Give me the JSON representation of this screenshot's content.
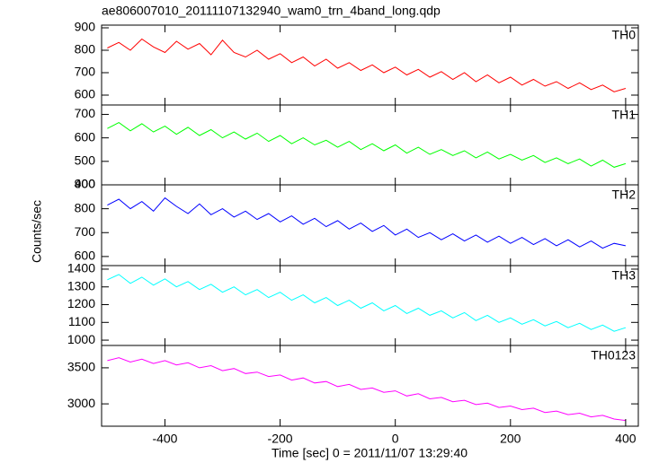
{
  "chart_data": [
    {
      "type": "line",
      "title": "ae806007010_20111107132940_wam0_trn_4band_long.qdp",
      "x": [
        -500,
        -480,
        -460,
        -440,
        -420,
        -400,
        -380,
        -360,
        -340,
        -320,
        -300,
        -280,
        -260,
        -240,
        -220,
        -200,
        -180,
        -160,
        -140,
        -120,
        -100,
        -80,
        -60,
        -40,
        -20,
        0,
        20,
        40,
        60,
        80,
        100,
        120,
        140,
        160,
        180,
        200,
        220,
        240,
        260,
        280,
        300,
        320,
        340,
        360,
        380,
        400
      ],
      "series": [
        {
          "name": "TH0",
          "color": "#ff0000",
          "values": [
            810,
            835,
            800,
            850,
            815,
            790,
            840,
            805,
            830,
            780,
            845,
            790,
            770,
            800,
            760,
            785,
            745,
            770,
            730,
            760,
            720,
            745,
            710,
            735,
            700,
            725,
            690,
            715,
            680,
            705,
            670,
            700,
            660,
            690,
            655,
            680,
            645,
            670,
            640,
            660,
            630,
            655,
            625,
            645,
            615,
            630
          ]
        }
      ],
      "ylim": [
        556,
        912
      ],
      "yticks": [
        600,
        700,
        800,
        900
      ]
    },
    {
      "type": "line",
      "x": [
        -500,
        -480,
        -460,
        -440,
        -420,
        -400,
        -380,
        -360,
        -340,
        -320,
        -300,
        -280,
        -260,
        -240,
        -220,
        -200,
        -180,
        -160,
        -140,
        -120,
        -100,
        -80,
        -60,
        -40,
        -20,
        0,
        20,
        40,
        60,
        80,
        100,
        120,
        140,
        160,
        180,
        200,
        220,
        240,
        260,
        280,
        300,
        320,
        340,
        360,
        380,
        400
      ],
      "series": [
        {
          "name": "TH1",
          "color": "#00ff00",
          "values": [
            640,
            665,
            630,
            660,
            625,
            650,
            615,
            645,
            610,
            635,
            600,
            625,
            595,
            620,
            585,
            610,
            575,
            600,
            570,
            590,
            560,
            585,
            550,
            575,
            545,
            570,
            535,
            560,
            530,
            550,
            525,
            545,
            515,
            540,
            510,
            530,
            505,
            525,
            495,
            515,
            490,
            510,
            480,
            505,
            475,
            490
          ]
        }
      ],
      "ylim": [
        400,
        740
      ],
      "yticks": [
        400,
        500,
        600,
        700
      ]
    },
    {
      "type": "line",
      "ylabel": "Counts/sec",
      "x": [
        -500,
        -480,
        -460,
        -440,
        -420,
        -400,
        -380,
        -360,
        -340,
        -320,
        -300,
        -280,
        -260,
        -240,
        -220,
        -200,
        -180,
        -160,
        -140,
        -120,
        -100,
        -80,
        -60,
        -40,
        -20,
        0,
        20,
        40,
        60,
        80,
        100,
        120,
        140,
        160,
        180,
        200,
        220,
        240,
        260,
        280,
        300,
        320,
        340,
        360,
        380,
        400
      ],
      "series": [
        {
          "name": "TH2",
          "color": "#0000ff",
          "values": [
            815,
            840,
            800,
            830,
            790,
            845,
            810,
            780,
            820,
            775,
            800,
            765,
            790,
            755,
            780,
            745,
            770,
            735,
            760,
            725,
            750,
            715,
            740,
            705,
            730,
            690,
            715,
            680,
            700,
            670,
            695,
            665,
            690,
            660,
            685,
            655,
            680,
            650,
            675,
            645,
            670,
            640,
            665,
            635,
            655,
            645
          ]
        }
      ],
      "ylim": [
        562,
        900
      ],
      "yticks": [
        600,
        700,
        800,
        900
      ]
    },
    {
      "type": "line",
      "x": [
        -500,
        -480,
        -460,
        -440,
        -420,
        -400,
        -380,
        -360,
        -340,
        -320,
        -300,
        -280,
        -260,
        -240,
        -220,
        -200,
        -180,
        -160,
        -140,
        -120,
        -100,
        -80,
        -60,
        -40,
        -20,
        0,
        20,
        40,
        60,
        80,
        100,
        120,
        140,
        160,
        180,
        200,
        220,
        240,
        260,
        280,
        300,
        320,
        340,
        360,
        380,
        400
      ],
      "series": [
        {
          "name": "TH3",
          "color": "#00ffff",
          "values": [
            1340,
            1370,
            1320,
            1355,
            1310,
            1345,
            1300,
            1330,
            1285,
            1315,
            1270,
            1300,
            1255,
            1285,
            1240,
            1270,
            1225,
            1255,
            1210,
            1240,
            1195,
            1225,
            1180,
            1210,
            1165,
            1195,
            1150,
            1180,
            1140,
            1165,
            1125,
            1155,
            1110,
            1140,
            1100,
            1125,
            1090,
            1115,
            1080,
            1105,
            1070,
            1095,
            1060,
            1085,
            1050,
            1070
          ]
        }
      ],
      "ylim": [
        970,
        1420
      ],
      "yticks": [
        1000,
        1100,
        1200,
        1300,
        1400
      ]
    },
    {
      "type": "line",
      "xlabel": "Time [sec] 0 = 2011/11/07 13:29:40",
      "x": [
        -500,
        -480,
        -460,
        -440,
        -420,
        -400,
        -380,
        -360,
        -340,
        -320,
        -300,
        -280,
        -260,
        -240,
        -220,
        -200,
        -180,
        -160,
        -140,
        -120,
        -100,
        -80,
        -60,
        -40,
        -20,
        0,
        20,
        40,
        60,
        80,
        100,
        120,
        140,
        160,
        180,
        200,
        220,
        240,
        260,
        280,
        300,
        320,
        340,
        360,
        380,
        400
      ],
      "series": [
        {
          "name": "TH0123",
          "color": "#ff00ff",
          "values": [
            3600,
            3640,
            3580,
            3620,
            3560,
            3600,
            3540,
            3570,
            3500,
            3530,
            3460,
            3490,
            3420,
            3440,
            3380,
            3400,
            3330,
            3360,
            3290,
            3310,
            3240,
            3270,
            3200,
            3220,
            3160,
            3180,
            3110,
            3140,
            3070,
            3090,
            3030,
            3050,
            2990,
            3010,
            2950,
            2970,
            2920,
            2940,
            2880,
            2900,
            2850,
            2870,
            2820,
            2840,
            2790,
            2770
          ]
        }
      ],
      "ylim": [
        2690,
        3810
      ],
      "yticks": [
        3000,
        3500
      ],
      "xlim": [
        -510,
        422
      ],
      "xticks": [
        -400,
        -200,
        0,
        200,
        400
      ]
    }
  ]
}
